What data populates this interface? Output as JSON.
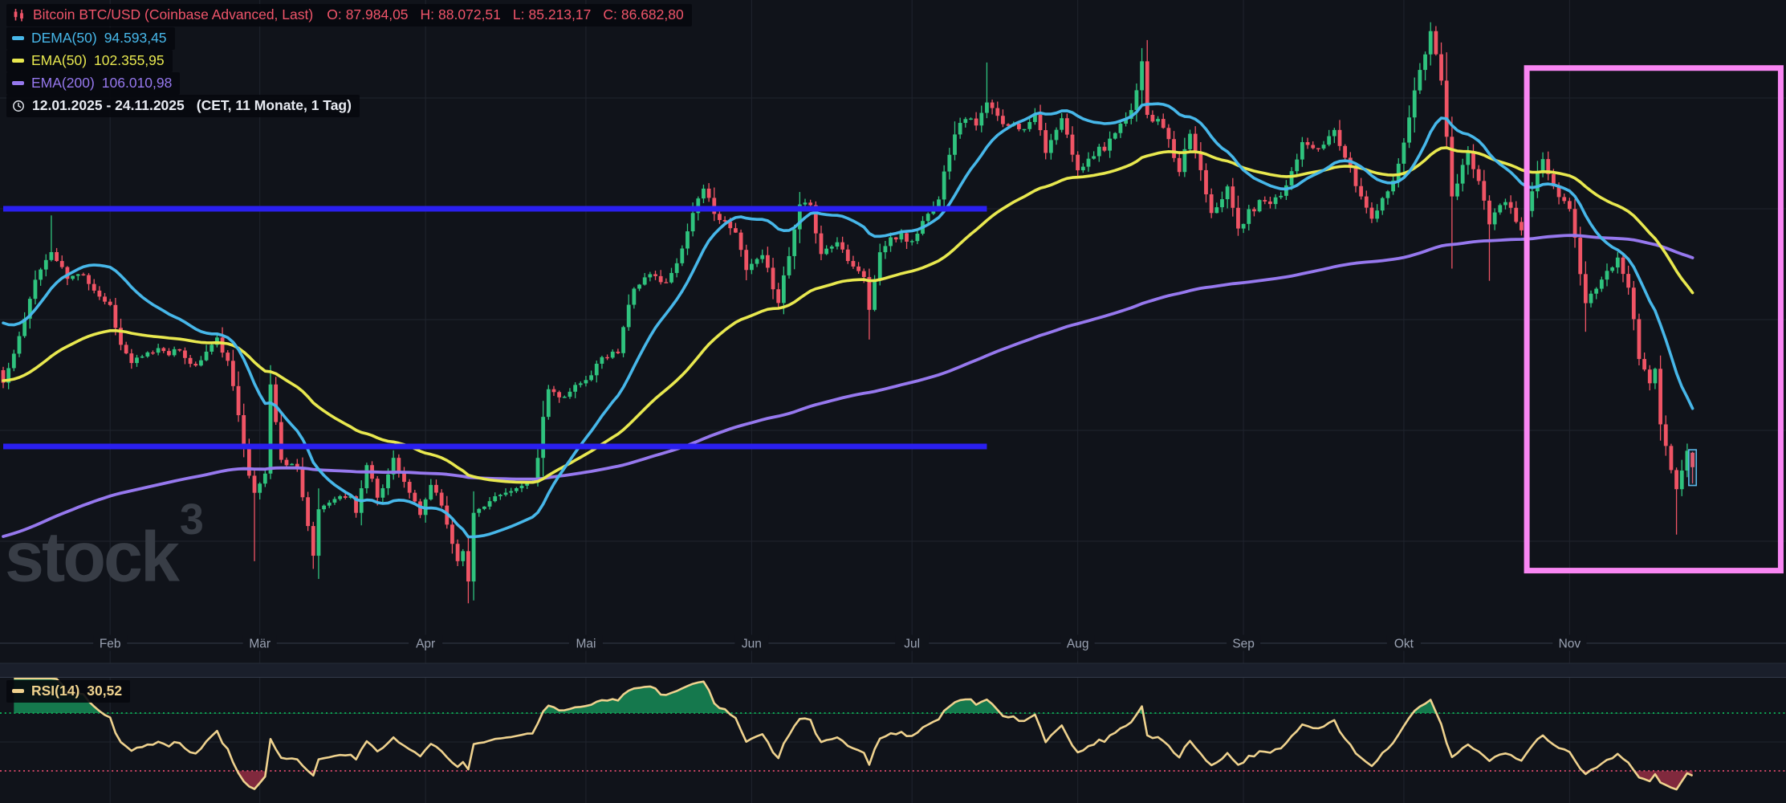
{
  "app": {
    "watermark_text": "stock",
    "watermark_sup": "3"
  },
  "header": {
    "instrument": "Bitcoin BTC/USD (Coinbase Advanced, Last)",
    "ohlc": [
      {
        "label": "O:",
        "value": "87.984,05"
      },
      {
        "label": "H:",
        "value": "88.072,51"
      },
      {
        "label": "L:",
        "value": "85.213,17"
      },
      {
        "label": "C:",
        "value": "86.682,80"
      }
    ]
  },
  "indicators": [
    {
      "label": "DEMA(50)",
      "value": "94.593,45",
      "color": "#47b7e9"
    },
    {
      "label": "EMA(50)",
      "value": "102.355,95",
      "color": "#e8e84f"
    },
    {
      "label": "EMA(200)",
      "value": "106.010,98",
      "color": "#9678ee"
    }
  ],
  "timerange": {
    "text": "12.01.2025 - 24.11.2025",
    "detail": "(CET, 11 Monate, 1 Tag)"
  },
  "rsi_panel": {
    "label": "RSI(14)",
    "value": "30,52",
    "overbought": 70,
    "oversold": 30
  },
  "x_axis": {
    "months": [
      {
        "label": "Feb",
        "day": 20
      },
      {
        "label": "Mär",
        "day": 48
      },
      {
        "label": "Apr",
        "day": 79
      },
      {
        "label": "Mai",
        "day": 109
      },
      {
        "label": "Jun",
        "day": 140
      },
      {
        "label": "Jul",
        "day": 170
      },
      {
        "label": "Aug",
        "day": 201
      },
      {
        "label": "Sep",
        "day": 232
      },
      {
        "label": "Okt",
        "day": 262
      },
      {
        "label": "Nov",
        "day": 293
      }
    ]
  },
  "colors": {
    "background": "#10131a",
    "grid": "#20242e",
    "axis_line": "#343b49",
    "axis_text": "#9aa2b2",
    "bull": "#2fc37e",
    "bear": "#f05465",
    "dema50": "#47b7e9",
    "ema50": "#e8e84f",
    "ema200": "#9678ee",
    "level_blue": "#2a1ff0",
    "box_pink": "#f986f3",
    "selection": "#5cb7e8",
    "header_red": "#f0556a",
    "date_text": "#e8ebf2",
    "rsi_line": "#efd28e",
    "rsi_ob": "#0fa554",
    "rsi_os": "#c94463",
    "rsi_ob_fill": "#16925a",
    "rsi_os_fill": "#942e44",
    "separator": "#1a1f2b",
    "watermark": "#383d46"
  },
  "chart_data": {
    "type": "candlestick",
    "symbol": "BTC/USD",
    "exchange": "Coinbase Advanced",
    "interval": "1 Tag",
    "range": "12.01.2025 - 24.11.2025",
    "price_grid": [
      80000,
      90000,
      100000,
      110000,
      120000
    ],
    "price_levels": [
      {
        "price": 110000,
        "from_day": 0,
        "to_day": 184
      },
      {
        "price": 88550,
        "from_day": 0,
        "to_day": 184
      }
    ],
    "highlight_box": {
      "from_day": 285,
      "to_day": 332.5,
      "top_price": 122700,
      "bottom_price": 77350
    },
    "last_candle": {
      "open": 87984.05,
      "high": 88072.51,
      "low": 85213.17,
      "close": 86682.8
    },
    "indicator_values": {
      "dema50": 94593.45,
      "ema50": 102355.95,
      "ema200": 106010.98,
      "rsi14": 30.52
    },
    "seed": 11,
    "close_anchors": [
      [
        0,
        94300
      ],
      [
        2,
        96900
      ],
      [
        4,
        100000
      ],
      [
        6,
        103700
      ],
      [
        9,
        106100
      ],
      [
        12,
        103700
      ],
      [
        15,
        104100
      ],
      [
        18,
        102100
      ],
      [
        20,
        101300
      ],
      [
        22,
        97700
      ],
      [
        24,
        96100
      ],
      [
        26,
        96600
      ],
      [
        29,
        97400
      ],
      [
        33,
        97100
      ],
      [
        36,
        95800
      ],
      [
        40,
        98300
      ],
      [
        42,
        96200
      ],
      [
        44,
        91400
      ],
      [
        46,
        86000
      ],
      [
        47,
        84300
      ],
      [
        49,
        86100
      ],
      [
        50,
        94200
      ],
      [
        52,
        87300
      ],
      [
        55,
        86700
      ],
      [
        58,
        78600
      ],
      [
        59,
        82900
      ],
      [
        62,
        83900
      ],
      [
        65,
        84000
      ],
      [
        66,
        82600
      ],
      [
        68,
        86900
      ],
      [
        70,
        84000
      ],
      [
        72,
        86000
      ],
      [
        73,
        87500
      ],
      [
        76,
        84400
      ],
      [
        78,
        82300
      ],
      [
        80,
        85100
      ],
      [
        82,
        83200
      ],
      [
        85,
        78200
      ],
      [
        86,
        79200
      ],
      [
        87,
        76300
      ],
      [
        88,
        82600
      ],
      [
        91,
        83700
      ],
      [
        95,
        84600
      ],
      [
        99,
        85200
      ],
      [
        100,
        87500
      ],
      [
        101,
        91200
      ],
      [
        102,
        93700
      ],
      [
        105,
        93000
      ],
      [
        108,
        94200
      ],
      [
        112,
        96500
      ],
      [
        115,
        97000
      ],
      [
        117,
        101300
      ],
      [
        118,
        102900
      ],
      [
        121,
        104100
      ],
      [
        124,
        103300
      ],
      [
        127,
        106400
      ],
      [
        129,
        109700
      ],
      [
        131,
        111700
      ],
      [
        134,
        109000
      ],
      [
        137,
        107800
      ],
      [
        139,
        104600
      ],
      [
        142,
        105900
      ],
      [
        145,
        101600
      ],
      [
        147,
        105700
      ],
      [
        149,
        110300
      ],
      [
        151,
        110200
      ],
      [
        153,
        106000
      ],
      [
        156,
        107000
      ],
      [
        159,
        104900
      ],
      [
        161,
        103900
      ],
      [
        162,
        100900
      ],
      [
        164,
        106100
      ],
      [
        166,
        107400
      ],
      [
        170,
        107100
      ],
      [
        173,
        109600
      ],
      [
        175,
        110800
      ],
      [
        176,
        113500
      ],
      [
        178,
        116800
      ],
      [
        180,
        118200
      ],
      [
        182,
        117600
      ],
      [
        184,
        119500
      ],
      [
        186,
        118300
      ],
      [
        188,
        117600
      ],
      [
        191,
        117300
      ],
      [
        193,
        118600
      ],
      [
        195,
        115000
      ],
      [
        198,
        118100
      ],
      [
        201,
        113400
      ],
      [
        203,
        114600
      ],
      [
        208,
        116700
      ],
      [
        211,
        118800
      ],
      [
        213,
        123300
      ],
      [
        214,
        118400
      ],
      [
        217,
        117400
      ],
      [
        220,
        113200
      ],
      [
        222,
        116800
      ],
      [
        224,
        113500
      ],
      [
        226,
        109700
      ],
      [
        229,
        111900
      ],
      [
        231,
        108200
      ],
      [
        235,
        110700
      ],
      [
        239,
        111200
      ],
      [
        243,
        115900
      ],
      [
        246,
        115300
      ],
      [
        249,
        117100
      ],
      [
        253,
        112100
      ],
      [
        256,
        109200
      ],
      [
        259,
        111700
      ],
      [
        261,
        114000
      ],
      [
        264,
        120700
      ],
      [
        266,
        123900
      ],
      [
        267,
        126000
      ],
      [
        269,
        121600
      ],
      [
        271,
        111000
      ],
      [
        274,
        115200
      ],
      [
        276,
        112500
      ],
      [
        278,
        108700
      ],
      [
        281,
        110700
      ],
      [
        284,
        108000
      ],
      [
        286,
        111500
      ],
      [
        288,
        114500
      ],
      [
        291,
        111000
      ],
      [
        293,
        110100
      ],
      [
        296,
        101500
      ],
      [
        299,
        103500
      ],
      [
        302,
        105700
      ],
      [
        304,
        103000
      ],
      [
        306,
        96500
      ],
      [
        308,
        94300
      ],
      [
        309,
        95600
      ],
      [
        310,
        90500
      ],
      [
        312,
        86400
      ],
      [
        313,
        84600
      ],
      [
        315,
        88100
      ],
      [
        316,
        86682.8
      ]
    ],
    "wick_overrides": [
      [
        9,
        109400,
        null
      ],
      [
        47,
        null,
        78200
      ],
      [
        59,
        null,
        76600
      ],
      [
        87,
        null,
        74400
      ],
      [
        131,
        111980,
        null
      ],
      [
        162,
        null,
        98200
      ],
      [
        184,
        123200,
        null
      ],
      [
        213,
        124500,
        null
      ],
      [
        267,
        126300,
        null
      ],
      [
        271,
        null,
        104600
      ],
      [
        278,
        null,
        103500
      ],
      [
        296,
        null,
        98900
      ],
      [
        313,
        null,
        80600
      ]
    ]
  }
}
